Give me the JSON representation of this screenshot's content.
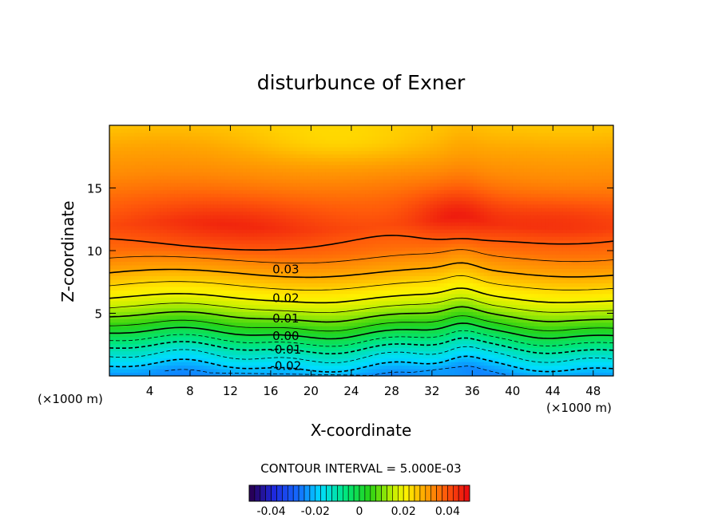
{
  "chart_data": {
    "type": "contour",
    "title": "disturbunce of Exner",
    "xlabel": "X-coordinate",
    "ylabel": "Z-coordinate",
    "x_unit_left": "(×1000 m)",
    "x_unit_right": "(×1000 m)",
    "xlim": [
      0,
      50
    ],
    "ylim": [
      0,
      20
    ],
    "xticks": [
      4,
      8,
      12,
      16,
      20,
      24,
      28,
      32,
      36,
      40,
      44,
      48
    ],
    "yticks": [
      5,
      10,
      15
    ],
    "contour_interval_text": "CONTOUR INTERVAL = 5.000E-03",
    "contour_labels": [
      {
        "text": "0.03",
        "x": 17.5,
        "z": 8.5
      },
      {
        "text": "0.02",
        "x": 17.5,
        "z": 6.2
      },
      {
        "text": "0.01",
        "x": 17.5,
        "z": 4.6
      },
      {
        "text": "0.00",
        "x": 17.5,
        "z": 3.2
      },
      {
        "text": "-0.01",
        "x": 17.5,
        "z": 2.1
      },
      {
        "text": "-0.02",
        "x": 17.5,
        "z": 0.8
      }
    ],
    "profile": {
      "z": [
        0,
        2,
        4,
        6,
        8,
        10,
        12,
        14,
        16,
        18,
        20
      ],
      "value": [
        -0.025,
        -0.012,
        0.005,
        0.019,
        0.029,
        0.037,
        0.041,
        0.038,
        0.034,
        0.031,
        0.027
      ]
    },
    "colorbar": {
      "min": -0.05,
      "max": 0.05,
      "tick_values": [
        -0.04,
        -0.02,
        0,
        0.02,
        0.04
      ],
      "tick_labels": [
        "-0.04",
        "-0.02",
        "0",
        "0.02",
        "0.04"
      ]
    },
    "colors": {
      "low": "#1e3fff",
      "mid_low": "#00e0ff",
      "mid": "#22d81e",
      "mid_high": "#fff200",
      "high": "#ff7a00",
      "max": "#f01010"
    },
    "grid": false
  }
}
